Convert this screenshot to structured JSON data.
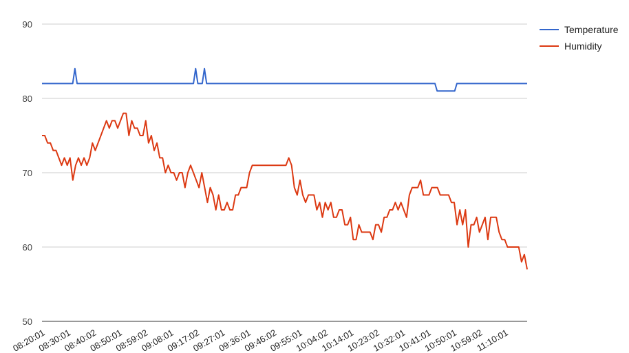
{
  "chart_data": {
    "type": "line",
    "title": "",
    "xlabel": "",
    "ylabel": "",
    "ylim": [
      50,
      90
    ],
    "yticks": [
      50,
      60,
      70,
      80,
      90
    ],
    "grid": true,
    "legend_position": "right",
    "x_tick_labels": [
      "08:20:01",
      "08:30:01",
      "08:40:02",
      "08:50:01",
      "08:59:02",
      "09:08:01",
      "09:17:02",
      "09:27:01",
      "09:36:01",
      "09:46:02",
      "09:55:01",
      "10:04:02",
      "10:14:01",
      "10:23:02",
      "10:32:01",
      "10:41:01",
      "10:50:01",
      "10:59:02",
      "11:10:01"
    ],
    "series": [
      {
        "name": "Temperature",
        "color": "#3366cc",
        "values": [
          82,
          82,
          82,
          82,
          82,
          82,
          82,
          82,
          82,
          82,
          82,
          82,
          82,
          82,
          82,
          84,
          82,
          82,
          82,
          82,
          82,
          82,
          82,
          82,
          82,
          82,
          82,
          82,
          82,
          82,
          82,
          82,
          82,
          82,
          82,
          82,
          82,
          82,
          82,
          82,
          82,
          82,
          82,
          82,
          82,
          82,
          82,
          82,
          82,
          82,
          82,
          82,
          82,
          82,
          82,
          82,
          82,
          82,
          82,
          82,
          82,
          82,
          82,
          82,
          82,
          82,
          82,
          82,
          82,
          82,
          84,
          82,
          82,
          82,
          84,
          82,
          82,
          82,
          82,
          82,
          82,
          82,
          82,
          82,
          82,
          82,
          82,
          82,
          82,
          82,
          82,
          82,
          82,
          82,
          82,
          82,
          82,
          82,
          82,
          82,
          82,
          82,
          82,
          82,
          82,
          82,
          82,
          82,
          82,
          82,
          82,
          82,
          82,
          82,
          82,
          82,
          82,
          82,
          82,
          82,
          82,
          82,
          82,
          82,
          82,
          82,
          82,
          82,
          82,
          82,
          82,
          82,
          82,
          82,
          82,
          82,
          82,
          82,
          82,
          82,
          82,
          82,
          82,
          82,
          82,
          82,
          82,
          82,
          82,
          82,
          82,
          82,
          82,
          82,
          82,
          82,
          82,
          82,
          82,
          82,
          82,
          82,
          82,
          82,
          82,
          82,
          82,
          82,
          82,
          82,
          82,
          82,
          82,
          82,
          82,
          82,
          82,
          82,
          82,
          82,
          81,
          81,
          81,
          81,
          81,
          81,
          81,
          81,
          81,
          82,
          82,
          82,
          82,
          82,
          82,
          82,
          82,
          82,
          82,
          82,
          82,
          82,
          82,
          82,
          82,
          82,
          82,
          82,
          82,
          82,
          82,
          82,
          82,
          82,
          82,
          82,
          82,
          82,
          82,
          82,
          82,
          82
        ]
      },
      {
        "name": "Humidity",
        "color": "#dc3912",
        "values": [
          75,
          75,
          74,
          74,
          73,
          73,
          72,
          71,
          72,
          71,
          72,
          69,
          71,
          72,
          71,
          72,
          71,
          72,
          74,
          73,
          74,
          75,
          76,
          77,
          76,
          77,
          77,
          76,
          77,
          78,
          78,
          75,
          77,
          76,
          76,
          75,
          75,
          77,
          74,
          75,
          73,
          74,
          72,
          72,
          70,
          71,
          70,
          70,
          69,
          70,
          70,
          68,
          70,
          71,
          70,
          69,
          68,
          70,
          68,
          66,
          68,
          67,
          65,
          67,
          65,
          65,
          66,
          65,
          65,
          67,
          67,
          68,
          68,
          68,
          70,
          71,
          71,
          71,
          71,
          71,
          71,
          71,
          71,
          71,
          71,
          71,
          71,
          71,
          72,
          71,
          68,
          67,
          69,
          67,
          66,
          67,
          67,
          67,
          65,
          66,
          64,
          66,
          65,
          66,
          64,
          64,
          65,
          65,
          63,
          63,
          64,
          61,
          61,
          63,
          62,
          62,
          62,
          62,
          61,
          63,
          63,
          62,
          64,
          64,
          65,
          65,
          66,
          65,
          66,
          65,
          64,
          67,
          68,
          68,
          68,
          69,
          67,
          67,
          67,
          68,
          68,
          68,
          67,
          67,
          67,
          67,
          66,
          66,
          63,
          65,
          63,
          65,
          60,
          63,
          63,
          64,
          62,
          63,
          64,
          61,
          64,
          64,
          64,
          62,
          61,
          61,
          60,
          60,
          60,
          60,
          60,
          58,
          59,
          57
        ]
      }
    ]
  }
}
